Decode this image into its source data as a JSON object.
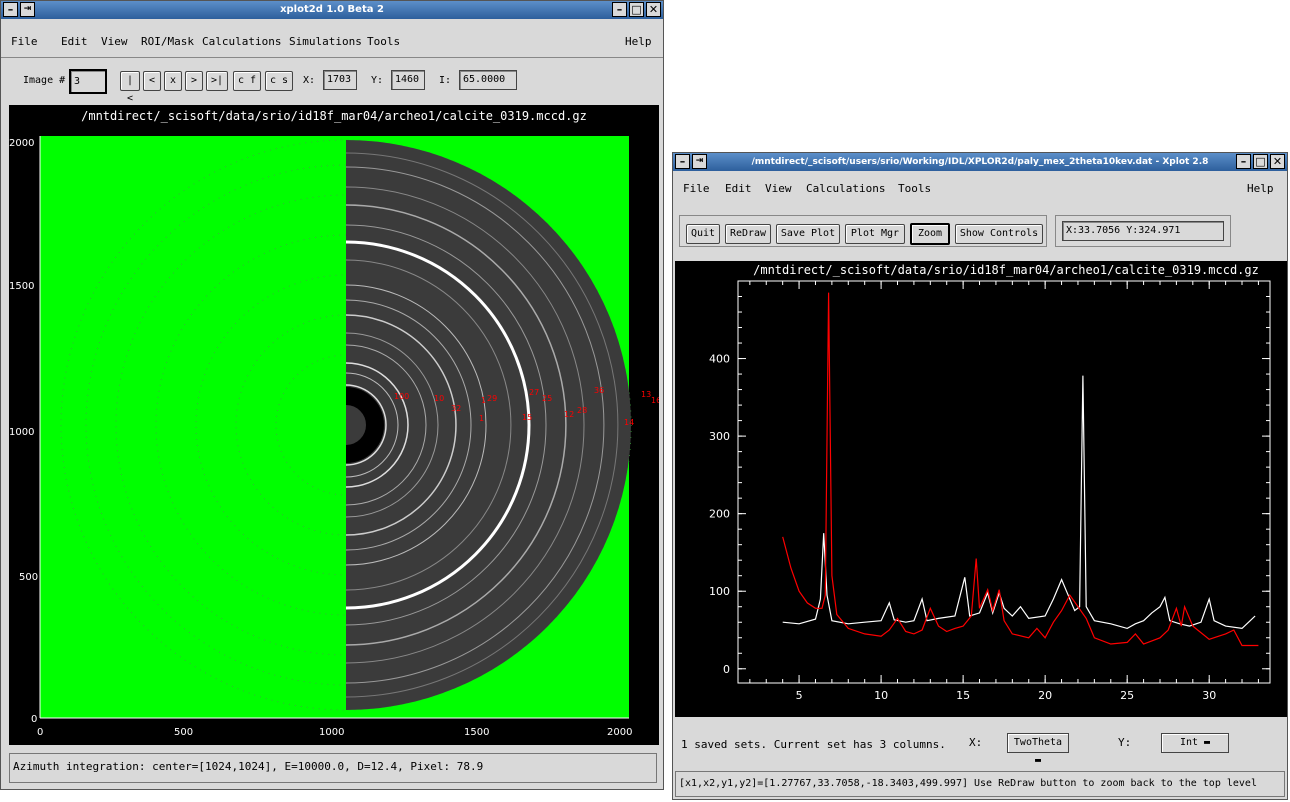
{
  "win1": {
    "title": "xplot2d 1.0 Beta 2",
    "menu": [
      "File",
      "Edit",
      "View",
      "ROI/Mask",
      "Calculations",
      "Simulations",
      "Tools"
    ],
    "help": "Help",
    "toolbar": {
      "image_label": "Image #",
      "image_value": "3",
      "nav_buttons": [
        "|<",
        "<",
        "x",
        ">",
        ">|"
      ],
      "cf": "c f",
      "cs": "c s",
      "x_label": "X:",
      "x_value": "1703",
      "y_label": "Y:",
      "y_value": "1460",
      "i_label": "I:",
      "i_value": "65.0000"
    },
    "image_path": "/mntdirect/_scisoft/data/srio/id18f_mar04/archeo1/calcite_0319.mccd.gz",
    "y_ticks": [
      "2000",
      "1500",
      "1000",
      "500",
      "0"
    ],
    "x_ticks": [
      "0",
      "500",
      "1000",
      "1500",
      "2000"
    ],
    "ring_labels": [
      "100",
      "10",
      "32",
      "1",
      "27",
      "25",
      "1",
      "29",
      "36",
      "15",
      "12",
      "28",
      "14",
      "13",
      "16",
      "14",
      "12"
    ],
    "status": "Azimuth integration: center=[1024,1024], E=10000.0, D=12.4, Pixel: 78.9",
    "colors": {
      "background_mask": "#00ff00",
      "image_bg": "#000000",
      "ring_marker": "#ff0000"
    }
  },
  "win2": {
    "title": "/mntdirect/_scisoft/users/srio/Working/IDL/XPLOR2d/paly_mex_2theta10kev.dat - Xplot 2.8",
    "menu": [
      "File",
      "Edit",
      "View",
      "Calculations",
      "Tools"
    ],
    "help": "Help",
    "buttons": [
      "Quit",
      "ReDraw",
      "Save Plot",
      "Plot Mgr",
      "Zoom",
      "Show Controls"
    ],
    "coord_readout": "X:33.7056 Y:324.971",
    "info_text": "1  saved sets. Current set has  3  columns.",
    "x_col_label": "X:",
    "x_col_value": "TwoTheta",
    "y_col_label": "Y:",
    "y_col_value": "Int",
    "status": "[x1,x2,y1,y2]=[1.27767,33.7058,-18.3403,499.997] Use ReDraw button to zoom back to the top level"
  },
  "chart_data": {
    "type": "line",
    "title": "/mntdirect/_scisoft/data/srio/id18f_mar04/archeo1/calcite_0319.mccd.gz",
    "xlabel": "",
    "ylabel": "",
    "xlim": [
      1.27767,
      33.7058
    ],
    "ylim": [
      -18.3403,
      499.997
    ],
    "x_ticks": [
      5,
      10,
      15,
      20,
      25,
      30
    ],
    "y_ticks": [
      0,
      100,
      200,
      300,
      400
    ],
    "grid": false,
    "series": [
      {
        "color": "#ffffff",
        "points": [
          [
            4,
            60
          ],
          [
            5,
            58
          ],
          [
            6,
            64
          ],
          [
            6.3,
            90
          ],
          [
            6.5,
            175
          ],
          [
            6.7,
            95
          ],
          [
            7,
            62
          ],
          [
            8,
            58
          ],
          [
            9,
            60
          ],
          [
            10,
            62
          ],
          [
            10.5,
            85
          ],
          [
            10.8,
            63
          ],
          [
            11.5,
            60
          ],
          [
            12,
            62
          ],
          [
            12.5,
            90
          ],
          [
            12.8,
            62
          ],
          [
            13.5,
            65
          ],
          [
            14.5,
            68
          ],
          [
            15.1,
            118
          ],
          [
            15.4,
            68
          ],
          [
            16,
            72
          ],
          [
            16.5,
            98
          ],
          [
            16.8,
            72
          ],
          [
            17.2,
            98
          ],
          [
            17.5,
            78
          ],
          [
            18,
            68
          ],
          [
            18.5,
            80
          ],
          [
            19,
            65
          ],
          [
            20,
            68
          ],
          [
            20.5,
            90
          ],
          [
            21,
            115
          ],
          [
            21.3,
            100
          ],
          [
            21.8,
            75
          ],
          [
            22.1,
            80
          ],
          [
            22.3,
            378
          ],
          [
            22.5,
            80
          ],
          [
            23,
            62
          ],
          [
            24,
            58
          ],
          [
            25,
            52
          ],
          [
            25.5,
            58
          ],
          [
            26,
            62
          ],
          [
            26.5,
            72
          ],
          [
            27,
            80
          ],
          [
            27.3,
            92
          ],
          [
            27.6,
            62
          ],
          [
            28.2,
            58
          ],
          [
            28.8,
            55
          ],
          [
            29.5,
            60
          ],
          [
            30,
            90
          ],
          [
            30.3,
            62
          ],
          [
            31,
            55
          ],
          [
            32,
            52
          ],
          [
            32.5,
            62
          ],
          [
            32.8,
            68
          ]
        ]
      },
      {
        "color": "#ff0000",
        "points": [
          [
            4,
            170
          ],
          [
            4.5,
            130
          ],
          [
            5,
            100
          ],
          [
            5.5,
            85
          ],
          [
            6,
            78
          ],
          [
            6.4,
            78
          ],
          [
            6.6,
            95
          ],
          [
            6.8,
            485
          ],
          [
            7,
            120
          ],
          [
            7.3,
            70
          ],
          [
            8,
            52
          ],
          [
            9,
            45
          ],
          [
            10,
            42
          ],
          [
            10.5,
            50
          ],
          [
            11,
            65
          ],
          [
            11.5,
            48
          ],
          [
            12,
            45
          ],
          [
            12.5,
            50
          ],
          [
            13,
            78
          ],
          [
            13.5,
            55
          ],
          [
            14,
            48
          ],
          [
            14.5,
            52
          ],
          [
            15,
            55
          ],
          [
            15.5,
            68
          ],
          [
            15.8,
            142
          ],
          [
            16,
            78
          ],
          [
            16.5,
            102
          ],
          [
            16.8,
            75
          ],
          [
            17.2,
            102
          ],
          [
            17.5,
            62
          ],
          [
            18,
            45
          ],
          [
            19,
            40
          ],
          [
            19.5,
            52
          ],
          [
            20,
            40
          ],
          [
            20.5,
            60
          ],
          [
            21,
            75
          ],
          [
            21.5,
            95
          ],
          [
            22,
            80
          ],
          [
            22.5,
            65
          ],
          [
            23,
            40
          ],
          [
            24,
            32
          ],
          [
            25,
            34
          ],
          [
            25.5,
            45
          ],
          [
            26,
            32
          ],
          [
            27,
            40
          ],
          [
            27.5,
            50
          ],
          [
            28,
            78
          ],
          [
            28.3,
            55
          ],
          [
            28.5,
            80
          ],
          [
            29,
            55
          ],
          [
            30,
            38
          ],
          [
            31,
            45
          ],
          [
            31.5,
            50
          ],
          [
            32,
            30
          ],
          [
            33,
            30
          ]
        ]
      }
    ]
  }
}
